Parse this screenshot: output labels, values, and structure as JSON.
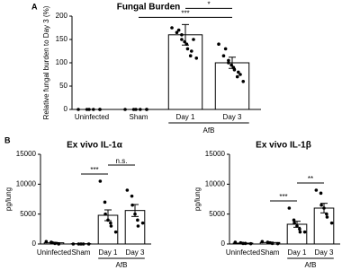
{
  "chart_data": [
    {
      "type": "bar",
      "panel": "A",
      "title": "Fungal Burden",
      "ylabel": "Relative fungal burden to Day 3 (%)",
      "categories": [
        "Uninfected",
        "Sham",
        "Day 1",
        "Day 3"
      ],
      "values": [
        0,
        0,
        160,
        100
      ],
      "errors": [
        0,
        0,
        22,
        12
      ],
      "points": [
        [
          0,
          0,
          0,
          0,
          0,
          0
        ],
        [
          0,
          0,
          0,
          0,
          0,
          0
        ],
        [
          175,
          170,
          165,
          160,
          150,
          145,
          140,
          130,
          125,
          115,
          110,
          150
        ],
        [
          140,
          130,
          115,
          105,
          100,
          95,
          90,
          85,
          80,
          70,
          60,
          75
        ]
      ],
      "group": {
        "label": "AfB",
        "categories": [
          "Day 1",
          "Day 3"
        ]
      },
      "annotations": [
        {
          "text": "***",
          "from": "Sham",
          "to": "Day 3"
        },
        {
          "text": "*",
          "from": "Day 1",
          "to": "Day 3"
        }
      ],
      "ylim": [
        0,
        200
      ],
      "yticks": [
        0,
        50,
        100,
        150,
        200
      ],
      "color": "#ffffff",
      "edge_color": "#000000"
    },
    {
      "type": "bar",
      "panel": "B",
      "title": "Ex vivo IL-1α",
      "ylabel": "pg/lung",
      "categories": [
        "Uninfected",
        "Sham",
        "Day 1",
        "Day 3"
      ],
      "values": [
        200,
        50,
        4800,
        5600
      ],
      "errors": [
        80,
        20,
        900,
        1000
      ],
      "points": [
        [
          400,
          300,
          200,
          100,
          50,
          0
        ],
        [
          0,
          0,
          0,
          0,
          0
        ],
        [
          10500,
          7000,
          5000,
          4000,
          3500,
          3000,
          2000
        ],
        [
          9000,
          8000,
          6500,
          5000,
          4000,
          3000,
          3500
        ]
      ],
      "group": {
        "label": "AfB",
        "categories": [
          "Day 1",
          "Day 3"
        ]
      },
      "annotations": [
        {
          "text": "***",
          "from": "Sham",
          "to": "Day 1"
        },
        {
          "text": "n.s.",
          "from": "Day 1",
          "to": "Day 3"
        }
      ],
      "ylim": [
        0,
        15000
      ],
      "yticks": [
        0,
        5000,
        10000,
        15000
      ],
      "color": "#ffffff",
      "edge_color": "#000000"
    },
    {
      "type": "bar",
      "title": "Ex vivo IL-1β",
      "ylabel": "pg/lung",
      "categories": [
        "Uninfected",
        "Sham",
        "Day 1",
        "Day 3"
      ],
      "values": [
        150,
        250,
        3300,
        6000
      ],
      "errors": [
        50,
        70,
        500,
        800
      ],
      "points": [
        [
          300,
          200,
          100,
          100,
          50
        ],
        [
          400,
          300,
          200,
          100,
          50
        ],
        [
          6000,
          4000,
          3500,
          3000,
          2500,
          2000,
          2000
        ],
        [
          9000,
          8500,
          6500,
          6000,
          5000,
          4500,
          3500
        ]
      ],
      "group": {
        "label": "AfB",
        "categories": [
          "Day 1",
          "Day 3"
        ]
      },
      "annotations": [
        {
          "text": "***",
          "from": "Sham",
          "to": "Day 1"
        },
        {
          "text": "**",
          "from": "Day 1",
          "to": "Day 3"
        }
      ],
      "ylim": [
        0,
        15000
      ],
      "yticks": [
        0,
        5000,
        10000,
        15000
      ],
      "color": "#ffffff",
      "edge_color": "#000000"
    }
  ]
}
